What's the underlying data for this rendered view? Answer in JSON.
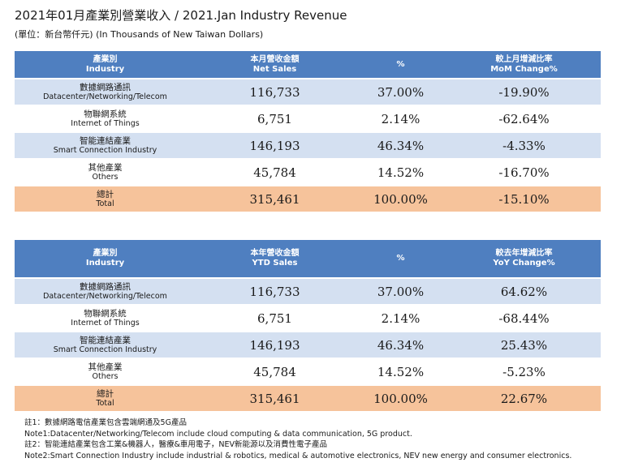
{
  "header": {
    "title": "2021年01月產業別營業收入 / 2021.Jan Industry Revenue",
    "subtitle": "(單位：新台幣仟元) (In Thousands of New Taiwan Dollars)"
  },
  "monthly": {
    "headers": {
      "industry_zh": "產業別",
      "industry_en": "Industry",
      "sales_zh": "本月營收金額",
      "sales_en": "Net Sales",
      "pct": "%",
      "change_zh": "較上月增減比率",
      "change_en": "MoM Change%"
    },
    "rows": [
      {
        "zh": "數據網路通訊",
        "en": "Datacenter/Networking/Telecom",
        "sales": "116,733",
        "pct": "37.00%",
        "change": "-19.90%"
      },
      {
        "zh": "物聯網系統",
        "en": "Internet of Things",
        "sales": "6,751",
        "pct": "2.14%",
        "change": "-62.64%"
      },
      {
        "zh": "智能連結產業",
        "en": "Smart Connection Industry",
        "sales": "146,193",
        "pct": "46.34%",
        "change": "-4.33%"
      },
      {
        "zh": "其他產業",
        "en": "Others",
        "sales": "45,784",
        "pct": "14.52%",
        "change": "-16.70%"
      }
    ],
    "total": {
      "zh": "總計",
      "en": "Total",
      "sales": "315,461",
      "pct": "100.00%",
      "change": "-15.10%"
    }
  },
  "ytd": {
    "headers": {
      "industry_zh": "產業別",
      "industry_en": "Industry",
      "sales_zh": "本年營收金額",
      "sales_en": "YTD Sales",
      "pct": "%",
      "change_zh": "較去年增減比率",
      "change_en": "YoY Change%"
    },
    "rows": [
      {
        "zh": "數據網路通訊",
        "en": "Datacenter/Networking/Telecom",
        "sales": "116,733",
        "pct": "37.00%",
        "change": "64.62%"
      },
      {
        "zh": "物聯網系統",
        "en": "Internet of Things",
        "sales": "6,751",
        "pct": "2.14%",
        "change": "-68.44%"
      },
      {
        "zh": "智能連結產業",
        "en": "Smart Connection Industry",
        "sales": "146,193",
        "pct": "46.34%",
        "change": "25.43%"
      },
      {
        "zh": "其他產業",
        "en": "Others",
        "sales": "45,784",
        "pct": "14.52%",
        "change": "-5.23%"
      }
    ],
    "total": {
      "zh": "總計",
      "en": "Total",
      "sales": "315,461",
      "pct": "100.00%",
      "change": "22.67%"
    }
  },
  "notes": {
    "note1_zh": "註1：數據網路電信產業包含雲端網通及5G產品",
    "note1_en": "Note1:Datacenter/Networking/Telecom include cloud computing & data communication, 5G product.",
    "note2_zh": "註2：智能連結產業包含工業&機器人，醫療&車用電子，NEV新能源以及消費性電子產品",
    "note2_en": "Note2:Smart Connection Industry include industrial & robotics, medical & automotive electronics, NEV new energy and consumer electronics."
  },
  "colors": {
    "header_bg": "#4f7fc0",
    "row_blue": "#d4e0f1",
    "row_white": "#ffffff",
    "total_bg": "#f6c39b"
  }
}
